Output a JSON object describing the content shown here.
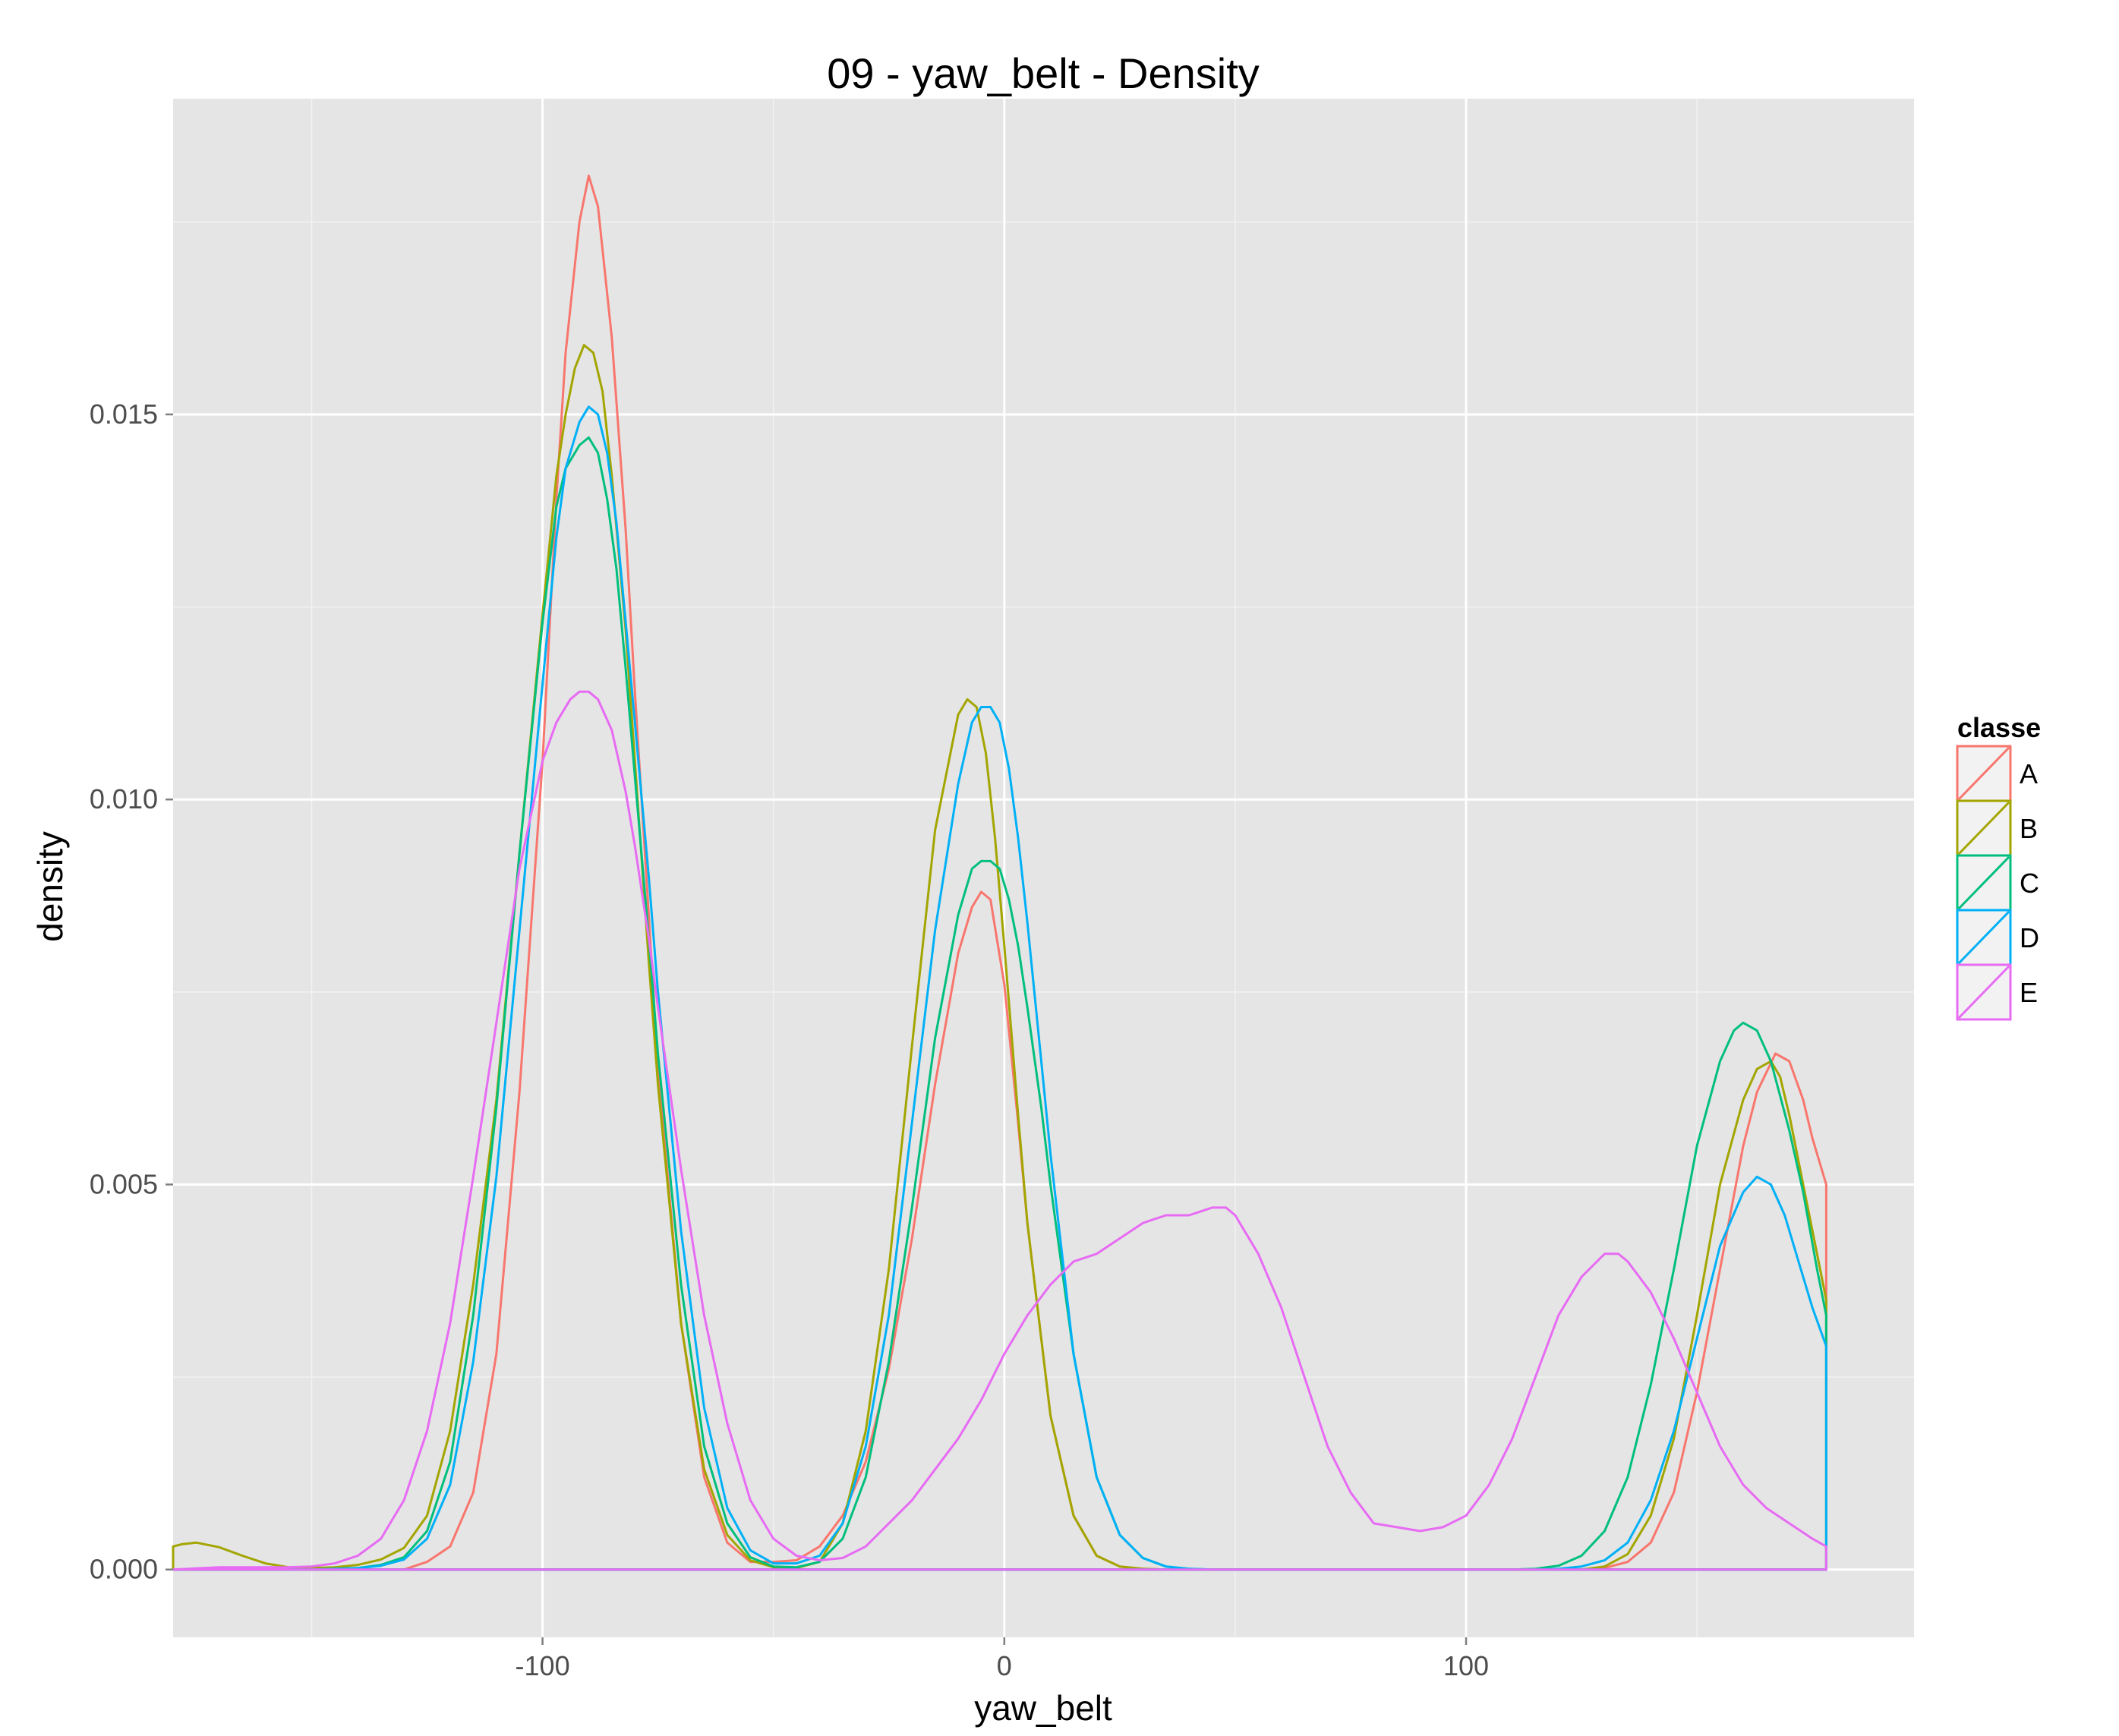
{
  "chart_data": {
    "type": "line",
    "title": "09 - yaw_belt - Density",
    "xlabel": "yaw_belt",
    "ylabel": "density",
    "xlim": [
      -180,
      197
    ],
    "ylim": [
      -0.00088,
      0.0191
    ],
    "x_ticks": [
      {
        "value": -100,
        "label": "-100"
      },
      {
        "value": 0,
        "label": "0"
      },
      {
        "value": 100,
        "label": "100"
      }
    ],
    "x_minor_ticks": [
      -150,
      -50,
      50,
      150
    ],
    "y_ticks": [
      {
        "value": 0.0,
        "label": "0.000"
      },
      {
        "value": 0.005,
        "label": "0.005"
      },
      {
        "value": 0.01,
        "label": "0.010"
      },
      {
        "value": 0.015,
        "label": "0.015"
      }
    ],
    "y_minor_ticks": [
      0.0025,
      0.0075,
      0.0125,
      0.0175
    ],
    "grid": true,
    "legend": {
      "title": "classe",
      "placement": "right"
    },
    "series": [
      {
        "name": "A",
        "color": "#F8766D",
        "x": [
          -180,
          -180,
          -150,
          -130,
          -125,
          -120,
          -115,
          -110,
          -105,
          -100,
          -97,
          -95,
          -92,
          -90,
          -88,
          -85,
          -82,
          -80,
          -77,
          -75,
          -70,
          -65,
          -60,
          -55,
          -50,
          -45,
          -40,
          -35,
          -30,
          -25,
          -20,
          -15,
          -10,
          -7,
          -5,
          -3,
          0,
          3,
          5,
          10,
          15,
          20,
          25,
          30,
          35,
          40,
          45,
          50,
          60,
          70,
          80,
          90,
          100,
          110,
          115,
          120,
          125,
          130,
          135,
          140,
          145,
          150,
          155,
          160,
          163,
          167,
          170,
          173,
          175,
          178,
          178,
          -180
        ],
        "y": [
          0.0,
          0.0,
          0.0,
          0.0,
          0.0001,
          0.0003,
          0.001,
          0.0028,
          0.0062,
          0.0105,
          0.0139,
          0.0158,
          0.0175,
          0.0181,
          0.0177,
          0.016,
          0.0135,
          0.0114,
          0.0085,
          0.0065,
          0.0032,
          0.0012,
          0.00035,
          0.0001,
          0.0001,
          0.00012,
          0.0003,
          0.0007,
          0.0014,
          0.0026,
          0.0043,
          0.0063,
          0.008,
          0.0086,
          0.0088,
          0.0087,
          0.0076,
          0.0058,
          0.0045,
          0.002,
          0.0007,
          0.00018,
          4e-05,
          1e-05,
          0.0,
          0.0,
          0.0,
          0.0,
          0.0,
          0.0,
          0.0,
          0.0,
          0.0,
          0.0,
          0.0,
          0.0,
          0.0,
          2e-05,
          0.0001,
          0.00035,
          0.001,
          0.0023,
          0.0039,
          0.0055,
          0.0062,
          0.0067,
          0.0066,
          0.0061,
          0.0056,
          0.005,
          0.0,
          0.0
        ]
      },
      {
        "name": "B",
        "color": "#A3A500",
        "x": [
          -180,
          -180,
          -178,
          -175,
          -170,
          -165,
          -160,
          -155,
          -150,
          -145,
          -140,
          -135,
          -130,
          -125,
          -120,
          -115,
          -110,
          -105,
          -100,
          -97,
          -95,
          -93,
          -91,
          -89,
          -87,
          -85,
          -82,
          -80,
          -77,
          -75,
          -70,
          -65,
          -60,
          -55,
          -50,
          -45,
          -40,
          -35,
          -30,
          -25,
          -20,
          -15,
          -10,
          -8,
          -6,
          -4,
          -2,
          0,
          3,
          5,
          10,
          15,
          20,
          25,
          30,
          35,
          40,
          45,
          50,
          60,
          70,
          80,
          90,
          100,
          110,
          115,
          120,
          125,
          130,
          135,
          140,
          145,
          150,
          155,
          160,
          163,
          166,
          168,
          170,
          173,
          176,
          178,
          178,
          -180
        ],
        "y": [
          0.0,
          0.0003,
          0.00033,
          0.00035,
          0.00029,
          0.00018,
          8e-05,
          3e-05,
          2e-05,
          3e-05,
          6e-05,
          0.00013,
          0.00028,
          0.0007,
          0.0018,
          0.0037,
          0.0061,
          0.0093,
          0.0124,
          0.0142,
          0.015,
          0.0156,
          0.0159,
          0.0158,
          0.0153,
          0.0142,
          0.0122,
          0.0105,
          0.0079,
          0.0063,
          0.0032,
          0.0013,
          0.00045,
          0.00012,
          3e-05,
          2e-05,
          0.0001,
          0.0006,
          0.0018,
          0.0039,
          0.0068,
          0.0096,
          0.0111,
          0.0113,
          0.0112,
          0.0106,
          0.0095,
          0.0081,
          0.0059,
          0.0045,
          0.002,
          0.0007,
          0.00018,
          4e-05,
          1e-05,
          0.0,
          0.0,
          0.0,
          0.0,
          0.0,
          0.0,
          0.0,
          0.0,
          0.0,
          0.0,
          0.0,
          0.0,
          0.0,
          4e-05,
          0.0002,
          0.0007,
          0.0017,
          0.0033,
          0.005,
          0.0061,
          0.0065,
          0.0066,
          0.0064,
          0.0059,
          0.005,
          0.0041,
          0.0035,
          0.0,
          0.0
        ]
      },
      {
        "name": "C",
        "color": "#00BF7D",
        "x": [
          -180,
          -180,
          -150,
          -145,
          -140,
          -135,
          -130,
          -125,
          -120,
          -115,
          -110,
          -105,
          -100,
          -97,
          -95,
          -92,
          -90,
          -88,
          -86,
          -84,
          -82,
          -80,
          -77,
          -75,
          -70,
          -65,
          -60,
          -55,
          -50,
          -45,
          -40,
          -35,
          -30,
          -25,
          -20,
          -15,
          -10,
          -7,
          -5,
          -3,
          -1,
          1,
          3,
          5,
          8,
          10,
          15,
          20,
          25,
          30,
          35,
          40,
          45,
          50,
          60,
          70,
          80,
          90,
          100,
          110,
          115,
          120,
          125,
          130,
          135,
          140,
          145,
          150,
          155,
          158,
          160,
          163,
          166,
          170,
          173,
          176,
          178,
          178,
          -180
        ],
        "y": [
          0.0,
          0.0,
          0.0,
          1e-05,
          2e-05,
          6e-05,
          0.00016,
          0.0005,
          0.0014,
          0.0033,
          0.006,
          0.0093,
          0.0123,
          0.0138,
          0.0143,
          0.0146,
          0.0147,
          0.0145,
          0.0139,
          0.013,
          0.0117,
          0.0103,
          0.0082,
          0.0067,
          0.0037,
          0.0016,
          0.0006,
          0.00016,
          4e-05,
          3e-05,
          0.0001,
          0.0004,
          0.0012,
          0.0027,
          0.0047,
          0.0069,
          0.0085,
          0.0091,
          0.0092,
          0.0092,
          0.0091,
          0.0087,
          0.0081,
          0.0073,
          0.006,
          0.005,
          0.0028,
          0.0012,
          0.00045,
          0.00015,
          4e-05,
          1e-05,
          0.0,
          0.0,
          0.0,
          0.0,
          0.0,
          0.0,
          0.0,
          0.0,
          1e-05,
          5e-05,
          0.00018,
          0.0005,
          0.0012,
          0.0024,
          0.0039,
          0.0055,
          0.0066,
          0.007,
          0.0071,
          0.007,
          0.0066,
          0.0057,
          0.0049,
          0.0039,
          0.0033,
          0.0,
          0.0
        ]
      },
      {
        "name": "D",
        "color": "#00B0F6",
        "x": [
          -180,
          -180,
          -150,
          -145,
          -140,
          -135,
          -130,
          -125,
          -120,
          -115,
          -110,
          -105,
          -100,
          -97,
          -95,
          -92,
          -90,
          -88,
          -86,
          -84,
          -82,
          -80,
          -77,
          -75,
          -70,
          -65,
          -60,
          -55,
          -50,
          -45,
          -40,
          -35,
          -30,
          -25,
          -20,
          -15,
          -10,
          -7,
          -5,
          -3,
          -1,
          1,
          3,
          5,
          8,
          10,
          15,
          20,
          25,
          30,
          35,
          40,
          45,
          50,
          60,
          70,
          80,
          90,
          100,
          110,
          115,
          120,
          125,
          130,
          135,
          140,
          145,
          150,
          155,
          160,
          163,
          166,
          169,
          172,
          175,
          178,
          178,
          -180
        ],
        "y": [
          0.0,
          0.0,
          0.0,
          1e-05,
          2e-05,
          5e-05,
          0.00013,
          0.0004,
          0.0011,
          0.0027,
          0.0051,
          0.0083,
          0.0115,
          0.0134,
          0.0143,
          0.0149,
          0.0151,
          0.015,
          0.0145,
          0.0136,
          0.0123,
          0.011,
          0.009,
          0.0075,
          0.0044,
          0.0021,
          0.0008,
          0.00025,
          8e-05,
          8e-05,
          0.00018,
          0.0006,
          0.0016,
          0.0033,
          0.0058,
          0.0083,
          0.0102,
          0.011,
          0.0112,
          0.0112,
          0.011,
          0.0104,
          0.0095,
          0.0084,
          0.0066,
          0.0054,
          0.0028,
          0.0012,
          0.00045,
          0.00015,
          4e-05,
          1e-05,
          0.0,
          0.0,
          0.0,
          0.0,
          0.0,
          0.0,
          0.0,
          0.0,
          0.0,
          1e-05,
          4e-05,
          0.00012,
          0.00035,
          0.0009,
          0.0018,
          0.003,
          0.0042,
          0.0049,
          0.0051,
          0.005,
          0.0046,
          0.004,
          0.0034,
          0.0029,
          0.0,
          0.0
        ]
      },
      {
        "name": "E",
        "color": "#E76BF3",
        "x": [
          -180,
          -170,
          -160,
          -155,
          -150,
          -145,
          -140,
          -135,
          -130,
          -125,
          -120,
          -115,
          -110,
          -105,
          -100,
          -97,
          -94,
          -92,
          -90,
          -88,
          -85,
          -82,
          -80,
          -77,
          -75,
          -70,
          -65,
          -60,
          -55,
          -50,
          -45,
          -40,
          -35,
          -30,
          -25,
          -20,
          -15,
          -10,
          -5,
          0,
          5,
          10,
          15,
          20,
          25,
          30,
          35,
          40,
          45,
          48,
          50,
          55,
          60,
          65,
          70,
          75,
          80,
          85,
          90,
          95,
          100,
          105,
          110,
          115,
          120,
          125,
          130,
          133,
          135,
          140,
          145,
          150,
          155,
          160,
          165,
          170,
          175,
          178,
          178,
          -180
        ],
        "y": [
          0.0,
          3e-05,
          3e-05,
          3e-05,
          4e-05,
          8e-05,
          0.00018,
          0.0004,
          0.0009,
          0.0018,
          0.0032,
          0.0051,
          0.0071,
          0.0091,
          0.0105,
          0.011,
          0.0113,
          0.0114,
          0.0114,
          0.0113,
          0.0109,
          0.0101,
          0.0094,
          0.0082,
          0.0073,
          0.0052,
          0.0033,
          0.0019,
          0.0009,
          0.0004,
          0.00018,
          0.00012,
          0.00015,
          0.0003,
          0.0006,
          0.0009,
          0.0013,
          0.0017,
          0.0022,
          0.0028,
          0.0033,
          0.0037,
          0.004,
          0.0041,
          0.0043,
          0.0045,
          0.0046,
          0.0046,
          0.0047,
          0.0047,
          0.0046,
          0.0041,
          0.0034,
          0.0025,
          0.0016,
          0.001,
          0.0006,
          0.00055,
          0.0005,
          0.00055,
          0.0007,
          0.0011,
          0.0017,
          0.0025,
          0.0033,
          0.0038,
          0.0041,
          0.0041,
          0.004,
          0.0036,
          0.003,
          0.0023,
          0.0016,
          0.0011,
          0.0008,
          0.0006,
          0.0004,
          0.0003,
          0.0,
          0.0
        ]
      }
    ]
  }
}
